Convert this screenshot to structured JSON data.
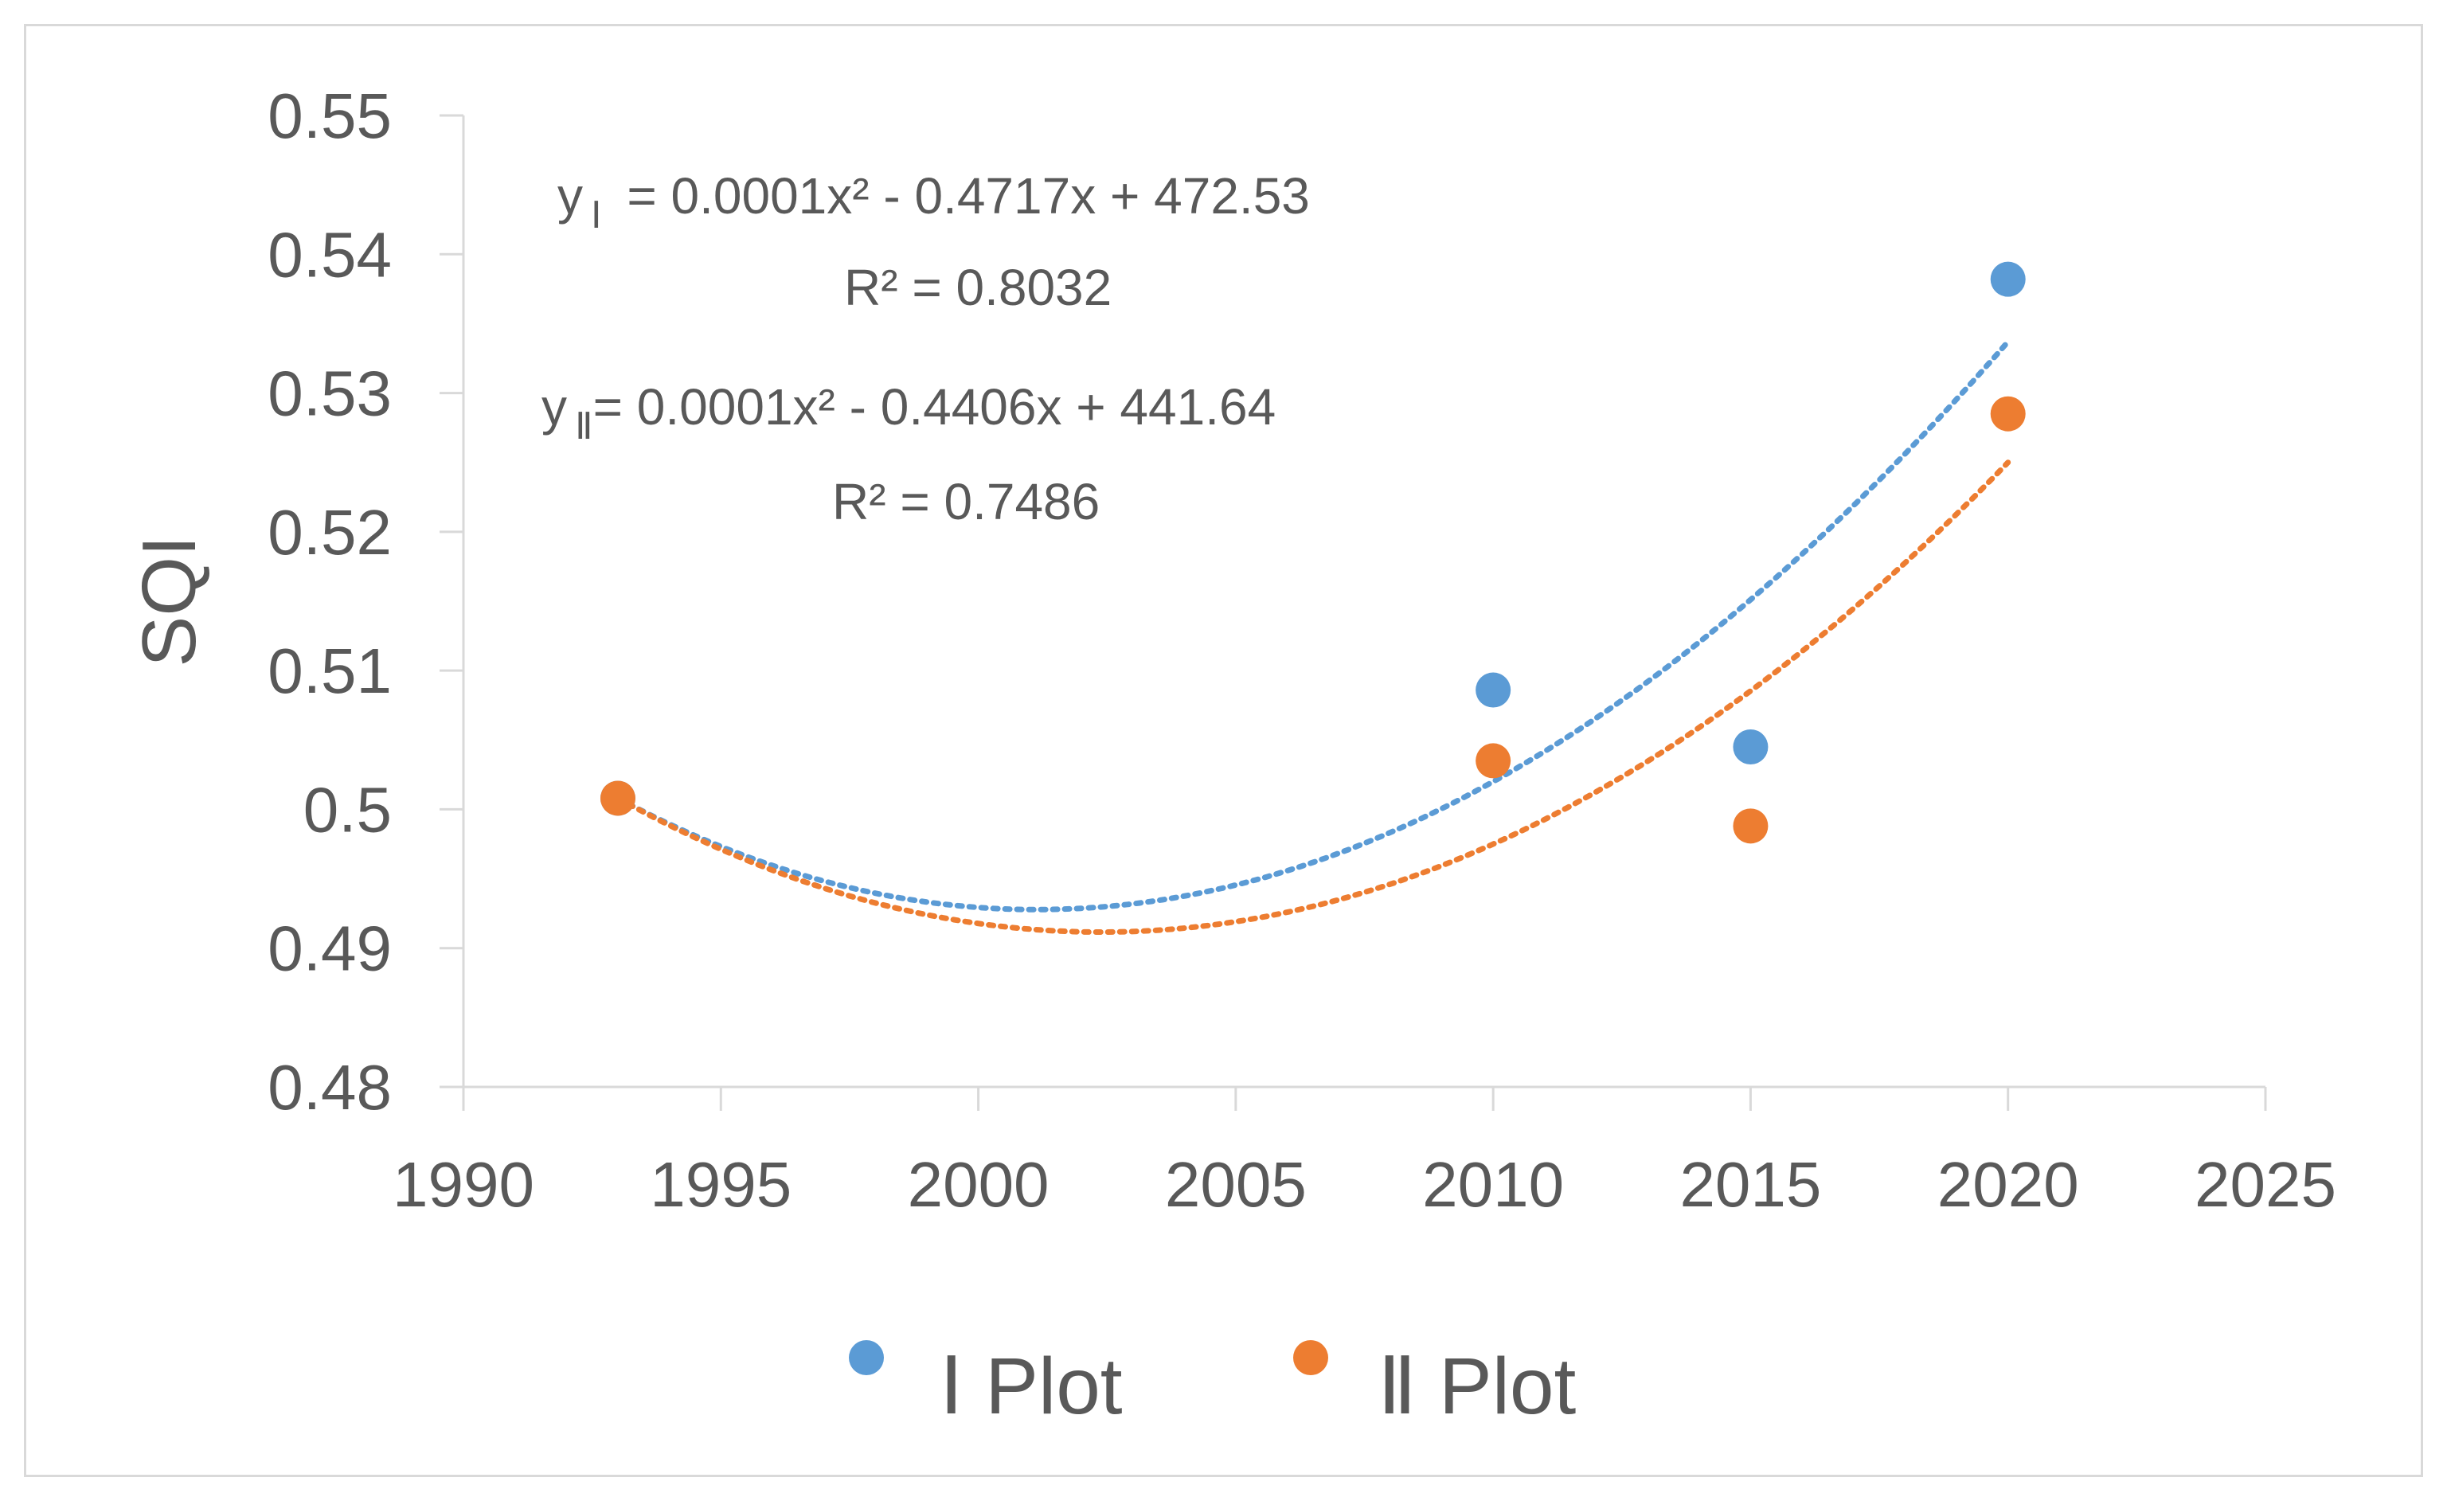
{
  "chart_data": {
    "type": "scatter",
    "ylabel": "SQI",
    "xlabel": "",
    "xlim": [
      1990,
      2025
    ],
    "ylim": [
      0.48,
      0.55
    ],
    "xticks": [
      "1990",
      "1995",
      "2000",
      "2005",
      "2010",
      "2015",
      "2020",
      "2025"
    ],
    "yticks": [
      "0.48",
      "0.49",
      "0.5",
      "0.51",
      "0.52",
      "0.53",
      "0.54",
      "0.55"
    ],
    "grid": false,
    "legend_position": "bottom",
    "series": [
      {
        "name": "Ⅰ Plot",
        "color": "#5b9bd5",
        "x": [
          1993,
          2010,
          2015,
          2020
        ],
        "y": [
          0.5008,
          0.5086,
          0.5045,
          0.5382
        ]
      },
      {
        "name": "Ⅱ Plot",
        "color": "#ed7d31",
        "x": [
          1993,
          2010,
          2015,
          2020
        ],
        "y": [
          0.5008,
          0.5035,
          0.4988,
          0.5285
        ]
      }
    ],
    "trendlines": [
      {
        "series": "Ⅰ Plot",
        "type": "polynomial-2",
        "x_range": [
          1993,
          2020
        ],
        "y_at": [
          [
            1993,
            0.5008
          ],
          [
            2002.5,
            0.493
          ],
          [
            2010,
            0.502
          ],
          [
            2020,
            0.5337
          ]
        ],
        "equation_label": "y",
        "equation_subscript": "Ⅰ",
        "equation_text": " = 0.0001x² - 0.4717x + 472.53",
        "r2_text": "R² = 0.8032"
      },
      {
        "series": "Ⅱ Plot",
        "type": "polynomial-2",
        "x_range": [
          1993,
          2020
        ],
        "y_at": [
          [
            1993,
            0.5008
          ],
          [
            2003,
            0.4912
          ],
          [
            2010,
            0.4975
          ],
          [
            2020,
            0.525
          ]
        ],
        "equation_label": "y",
        "equation_subscript": "Ⅱ",
        "equation_text": "= 0.0001x² - 0.4406x + 441.64",
        "r2_text": "R² = 0.7486"
      }
    ]
  }
}
